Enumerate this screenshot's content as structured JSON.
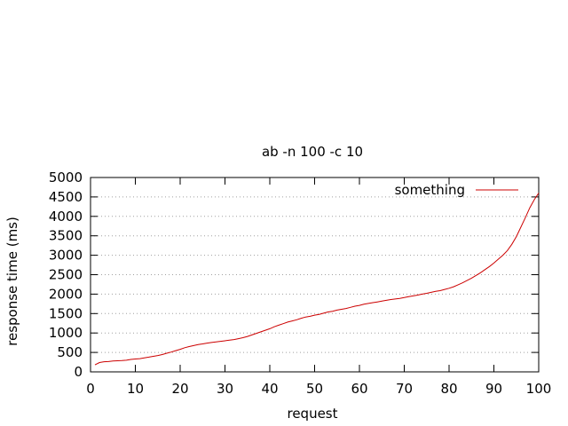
{
  "chart_data": {
    "type": "line",
    "title": "ab -n 100 -c 10",
    "xlabel": "request",
    "ylabel": "response time (ms)",
    "xlim": [
      0,
      100
    ],
    "ylim": [
      0,
      5000
    ],
    "xticks": [
      0,
      10,
      20,
      30,
      40,
      50,
      60,
      70,
      80,
      90,
      100
    ],
    "yticks": [
      0,
      500,
      1000,
      1500,
      2000,
      2500,
      3000,
      3500,
      4000,
      4500,
      5000
    ],
    "grid": "horizontal dotted",
    "legend_position": "top-right",
    "series": [
      {
        "name": "something",
        "color": "#cc0000",
        "x": [
          1,
          2,
          3,
          4,
          5,
          6,
          7,
          8,
          9,
          10,
          11,
          12,
          13,
          14,
          15,
          16,
          17,
          18,
          19,
          20,
          21,
          22,
          23,
          24,
          25,
          26,
          27,
          28,
          29,
          30,
          31,
          32,
          33,
          34,
          35,
          36,
          37,
          38,
          39,
          40,
          41,
          42,
          43,
          44,
          45,
          46,
          47,
          48,
          49,
          50,
          51,
          52,
          53,
          54,
          55,
          56,
          57,
          58,
          59,
          60,
          61,
          62,
          63,
          64,
          65,
          66,
          67,
          68,
          69,
          70,
          71,
          72,
          73,
          74,
          75,
          76,
          77,
          78,
          79,
          80,
          81,
          82,
          83,
          84,
          85,
          86,
          87,
          88,
          89,
          90,
          91,
          92,
          93,
          94,
          95,
          96,
          97,
          98,
          99,
          100
        ],
        "values": [
          180,
          240,
          260,
          265,
          280,
          285,
          290,
          300,
          320,
          330,
          340,
          360,
          380,
          400,
          420,
          445,
          480,
          510,
          545,
          580,
          620,
          650,
          675,
          700,
          720,
          740,
          755,
          770,
          785,
          800,
          815,
          830,
          855,
          880,
          910,
          950,
          990,
          1030,
          1070,
          1110,
          1160,
          1200,
          1240,
          1280,
          1310,
          1340,
          1380,
          1410,
          1430,
          1460,
          1480,
          1510,
          1540,
          1560,
          1590,
          1610,
          1630,
          1660,
          1690,
          1710,
          1740,
          1760,
          1780,
          1800,
          1820,
          1840,
          1860,
          1875,
          1890,
          1910,
          1935,
          1955,
          1975,
          2000,
          2020,
          2045,
          2070,
          2090,
          2120,
          2150,
          2190,
          2240,
          2290,
          2350,
          2410,
          2480,
          2550,
          2630,
          2710,
          2800,
          2900,
          3000,
          3120,
          3280,
          3480,
          3720,
          3960,
          4220,
          4430,
          4600
        ]
      }
    ]
  }
}
